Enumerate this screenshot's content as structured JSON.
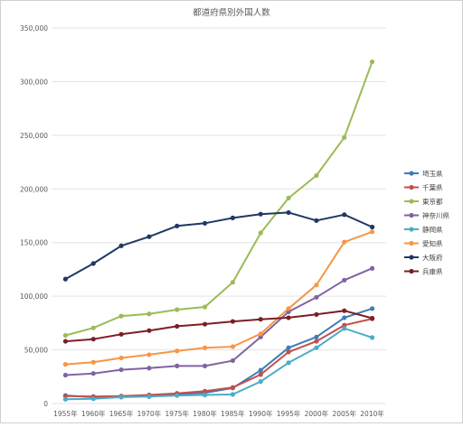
{
  "chart_data": {
    "type": "line",
    "title": "都道府県別外国人数",
    "xlabel": "",
    "ylabel": "",
    "categories": [
      "1955年",
      "1960年",
      "1965年",
      "1970年",
      "1975年",
      "1980年",
      "1985年",
      "1990年",
      "1995年",
      "2000年",
      "2005年",
      "2010年"
    ],
    "ylim": [
      0,
      350000
    ],
    "yticks": [
      "0",
      "50,000",
      "100,000",
      "150,000",
      "200,000",
      "250,000",
      "300,000",
      "350,000"
    ],
    "ytick_values": [
      0,
      50000,
      100000,
      150000,
      200000,
      250000,
      300000,
      350000
    ],
    "grid": true,
    "legend_position": "right",
    "series": [
      {
        "name": "埼玉県",
        "color": "#3d7db8",
        "values": [
          7500,
          6000,
          6500,
          7500,
          8500,
          10000,
          14500,
          31000,
          52000,
          62000,
          80000,
          88500
        ]
      },
      {
        "name": "千葉県",
        "color": "#c0504d",
        "values": [
          7000,
          6500,
          7000,
          8000,
          9500,
          11500,
          15000,
          27000,
          48000,
          58000,
          73000,
          79000
        ]
      },
      {
        "name": "東京都",
        "color": "#9bbb59",
        "values": [
          63500,
          70500,
          81500,
          83500,
          87500,
          90000,
          113000,
          159000,
          191500,
          212500,
          248000,
          318500
        ]
      },
      {
        "name": "神奈川県",
        "color": "#8064a2",
        "values": [
          26500,
          28000,
          31500,
          33000,
          35000,
          35000,
          40000,
          62000,
          85500,
          99000,
          115000,
          126000
        ]
      },
      {
        "name": "静岡県",
        "color": "#4bacc6",
        "values": [
          4000,
          4500,
          6000,
          6500,
          7500,
          8000,
          8500,
          20500,
          38000,
          52000,
          70000,
          61500
        ]
      },
      {
        "name": "愛知県",
        "color": "#f79646",
        "values": [
          36500,
          38500,
          42500,
          45500,
          49000,
          52000,
          53000,
          65000,
          88500,
          110500,
          150500,
          160000
        ]
      },
      {
        "name": "大阪府",
        "color": "#1f3864",
        "values": [
          116000,
          130500,
          147000,
          155500,
          165500,
          168000,
          173000,
          176500,
          178000,
          170500,
          176000,
          164500
        ]
      },
      {
        "name": "兵庫県",
        "color": "#7b1f23",
        "values": [
          58000,
          60000,
          64500,
          68000,
          72000,
          74000,
          76500,
          78500,
          80000,
          83000,
          86500,
          79500
        ]
      }
    ]
  }
}
